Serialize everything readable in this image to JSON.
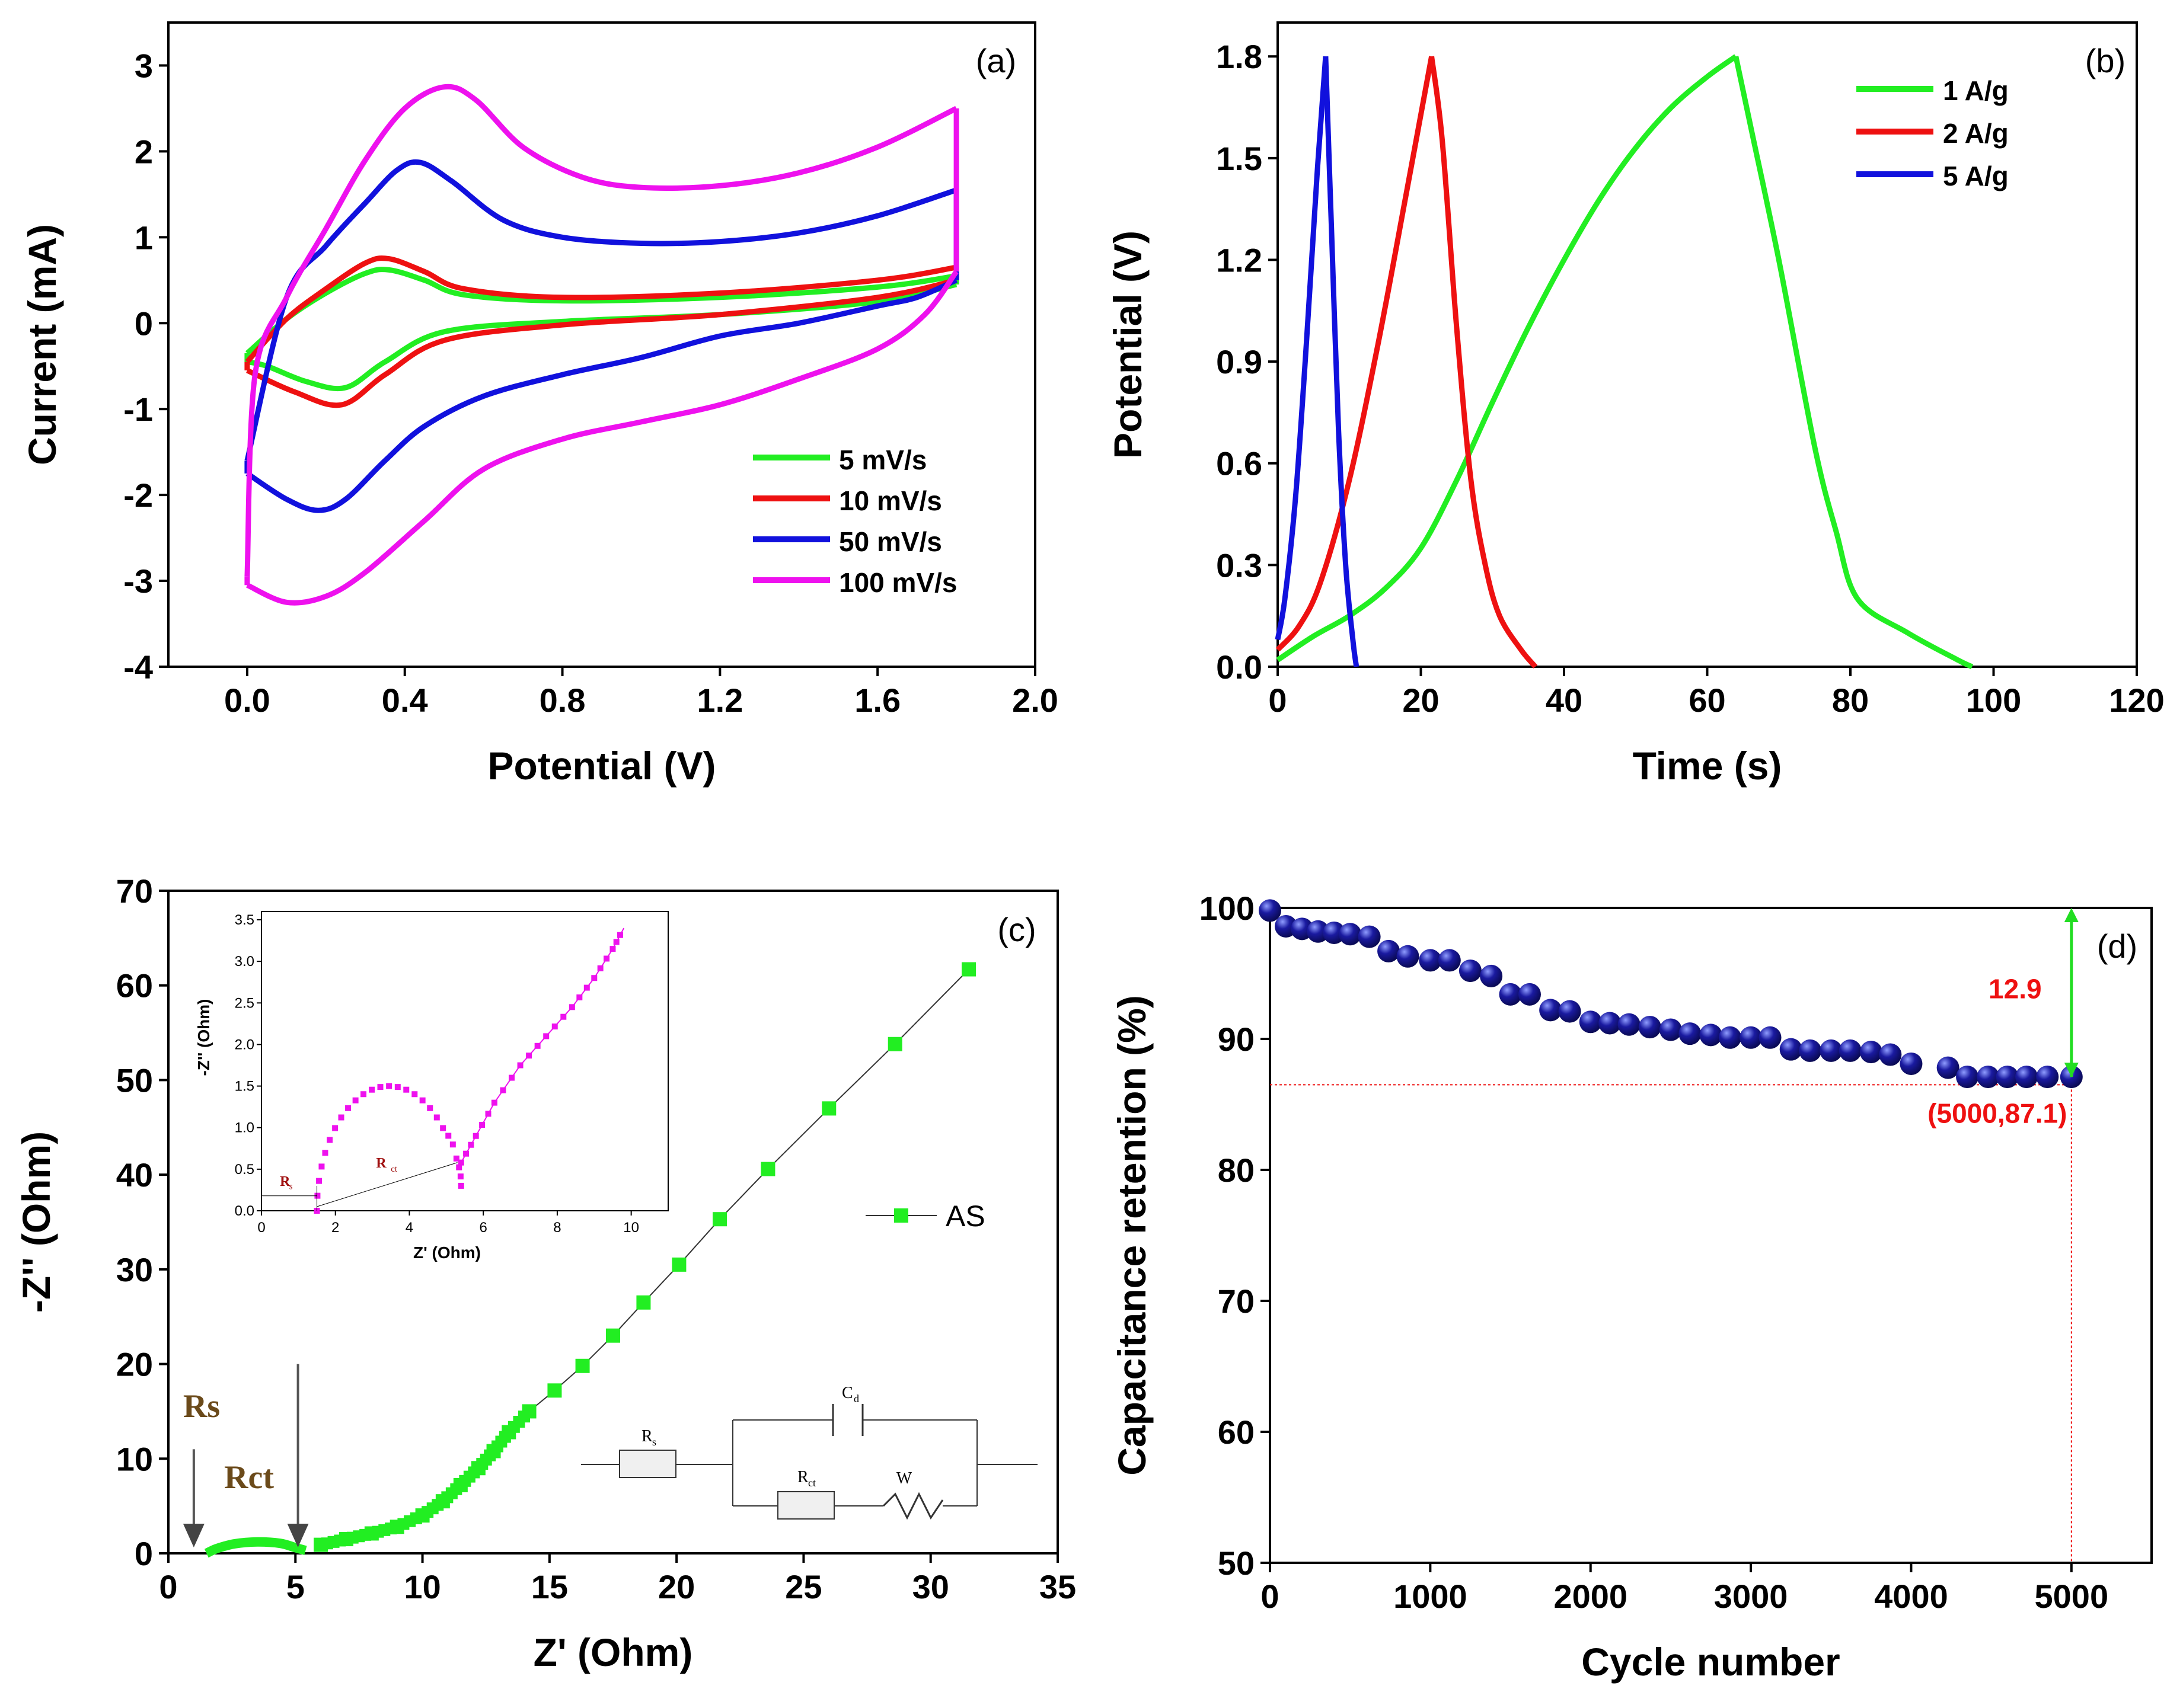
{
  "chart_data": [
    {
      "id": "a",
      "type": "line",
      "panel_label": "(a)",
      "xlabel": "Potential (V)",
      "ylabel": "Current (mA)",
      "xlim": [
        -0.2,
        2.0
      ],
      "ylim": [
        -4,
        3.5
      ],
      "xticks": [
        0.0,
        0.4,
        0.8,
        1.2,
        1.6,
        2.0
      ],
      "xtick_labels": [
        "0.0",
        "0.4",
        "0.8",
        "1.2",
        "1.6",
        "2.0"
      ],
      "yticks": [
        -4,
        -3,
        -2,
        -1,
        0,
        1,
        2,
        3
      ],
      "ytick_labels": [
        "-4",
        "-3",
        "-2",
        "-1",
        "0",
        "1",
        "2",
        "3"
      ],
      "legend_position": "bottom-right",
      "series": [
        {
          "name": "5 mV/s",
          "color": "#22ee22",
          "anodic": [
            [
              0.0,
              -0.35
            ],
            [
              0.1,
              0.05
            ],
            [
              0.2,
              0.35
            ],
            [
              0.3,
              0.58
            ],
            [
              0.36,
              0.62
            ],
            [
              0.45,
              0.5
            ],
            [
              0.55,
              0.33
            ],
            [
              0.8,
              0.26
            ],
            [
              1.2,
              0.3
            ],
            [
              1.6,
              0.42
            ],
            [
              1.8,
              0.55
            ]
          ],
          "cathodic": [
            [
              1.8,
              0.45
            ],
            [
              1.6,
              0.25
            ],
            [
              1.2,
              0.1
            ],
            [
              0.8,
              0.02
            ],
            [
              0.5,
              -0.1
            ],
            [
              0.35,
              -0.45
            ],
            [
              0.25,
              -0.75
            ],
            [
              0.15,
              -0.68
            ],
            [
              0.05,
              -0.5
            ],
            [
              0.0,
              -0.45
            ]
          ]
        },
        {
          "name": "10 mV/s",
          "color": "#ee1111",
          "anodic": [
            [
              0.0,
              -0.45
            ],
            [
              0.1,
              0.05
            ],
            [
              0.2,
              0.4
            ],
            [
              0.3,
              0.7
            ],
            [
              0.36,
              0.75
            ],
            [
              0.45,
              0.6
            ],
            [
              0.55,
              0.4
            ],
            [
              0.8,
              0.3
            ],
            [
              1.2,
              0.35
            ],
            [
              1.6,
              0.5
            ],
            [
              1.8,
              0.65
            ]
          ],
          "cathodic": [
            [
              1.8,
              0.5
            ],
            [
              1.6,
              0.3
            ],
            [
              1.2,
              0.1
            ],
            [
              0.8,
              -0.02
            ],
            [
              0.5,
              -0.2
            ],
            [
              0.35,
              -0.6
            ],
            [
              0.24,
              -0.95
            ],
            [
              0.12,
              -0.8
            ],
            [
              0.0,
              -0.55
            ]
          ]
        },
        {
          "name": "50 mV/s",
          "color": "#1111dd",
          "anodic": [
            [
              0.0,
              -1.6
            ],
            [
              0.1,
              0.3
            ],
            [
              0.2,
              0.9
            ],
            [
              0.3,
              1.4
            ],
            [
              0.38,
              1.78
            ],
            [
              0.44,
              1.87
            ],
            [
              0.52,
              1.65
            ],
            [
              0.65,
              1.2
            ],
            [
              0.8,
              1.0
            ],
            [
              1.0,
              0.93
            ],
            [
              1.2,
              0.95
            ],
            [
              1.4,
              1.05
            ],
            [
              1.6,
              1.25
            ],
            [
              1.8,
              1.55
            ]
          ],
          "cathodic": [
            [
              1.8,
              0.5
            ],
            [
              1.7,
              0.3
            ],
            [
              1.6,
              0.2
            ],
            [
              1.4,
              0.0
            ],
            [
              1.2,
              -0.15
            ],
            [
              1.0,
              -0.4
            ],
            [
              0.8,
              -0.6
            ],
            [
              0.6,
              -0.85
            ],
            [
              0.45,
              -1.2
            ],
            [
              0.35,
              -1.6
            ],
            [
              0.25,
              -2.05
            ],
            [
              0.18,
              -2.18
            ],
            [
              0.1,
              -2.05
            ],
            [
              0.0,
              -1.75
            ]
          ]
        },
        {
          "name": "100 mV/s",
          "color": "#ee11ee",
          "anodic": [
            [
              0.0,
              -2.95
            ],
            [
              0.02,
              -0.6
            ],
            [
              0.1,
              0.3
            ],
            [
              0.2,
              1.1
            ],
            [
              0.3,
              1.9
            ],
            [
              0.4,
              2.5
            ],
            [
              0.5,
              2.75
            ],
            [
              0.58,
              2.6
            ],
            [
              0.7,
              2.05
            ],
            [
              0.85,
              1.7
            ],
            [
              1.0,
              1.58
            ],
            [
              1.2,
              1.6
            ],
            [
              1.4,
              1.75
            ],
            [
              1.6,
              2.05
            ],
            [
              1.8,
              2.5
            ]
          ],
          "cathodic": [
            [
              1.8,
              0.6
            ],
            [
              1.72,
              0.1
            ],
            [
              1.6,
              -0.3
            ],
            [
              1.4,
              -0.65
            ],
            [
              1.2,
              -0.95
            ],
            [
              1.0,
              -1.15
            ],
            [
              0.8,
              -1.35
            ],
            [
              0.6,
              -1.7
            ],
            [
              0.45,
              -2.3
            ],
            [
              0.3,
              -2.9
            ],
            [
              0.2,
              -3.18
            ],
            [
              0.1,
              -3.25
            ],
            [
              0.0,
              -3.05
            ]
          ]
        }
      ]
    },
    {
      "id": "b",
      "type": "line",
      "panel_label": "(b)",
      "xlabel": "Time (s)",
      "ylabel": "Potential (V)",
      "xlim": [
        0,
        120
      ],
      "ylim": [
        0,
        1.9
      ],
      "xticks": [
        0,
        20,
        40,
        60,
        80,
        100,
        120
      ],
      "xtick_labels": [
        "0",
        "20",
        "40",
        "60",
        "80",
        "100",
        "120"
      ],
      "yticks": [
        0.0,
        0.3,
        0.6,
        0.9,
        1.2,
        1.5,
        1.8
      ],
      "ytick_labels": [
        "0.0",
        "0.3",
        "0.6",
        "0.9",
        "1.2",
        "1.5",
        "1.8"
      ],
      "legend_position": "top-right",
      "series": [
        {
          "name": "1 A/g",
          "color": "#22ee22",
          "points": [
            [
              0,
              0.02
            ],
            [
              5,
              0.09
            ],
            [
              10,
              0.15
            ],
            [
              15,
              0.23
            ],
            [
              20,
              0.35
            ],
            [
              25,
              0.55
            ],
            [
              30,
              0.78
            ],
            [
              35,
              1.0
            ],
            [
              40,
              1.2
            ],
            [
              45,
              1.38
            ],
            [
              50,
              1.53
            ],
            [
              55,
              1.65
            ],
            [
              60,
              1.74
            ],
            [
              64,
              1.8
            ],
            [
              66,
              1.6
            ],
            [
              70,
              1.2
            ],
            [
              75,
              0.65
            ],
            [
              78,
              0.4
            ],
            [
              81,
              0.2
            ],
            [
              88,
              0.1
            ],
            [
              95,
              0.02
            ],
            [
              97,
              0.0
            ]
          ]
        },
        {
          "name": "2 A/g",
          "color": "#ee1111",
          "points": [
            [
              0,
              0.05
            ],
            [
              3,
              0.12
            ],
            [
              6,
              0.25
            ],
            [
              10,
              0.55
            ],
            [
              14,
              0.95
            ],
            [
              18,
              1.4
            ],
            [
              21.5,
              1.8
            ],
            [
              23,
              1.55
            ],
            [
              25,
              1.0
            ],
            [
              27,
              0.55
            ],
            [
              29,
              0.3
            ],
            [
              31,
              0.15
            ],
            [
              34,
              0.05
            ],
            [
              36,
              0.0
            ]
          ]
        },
        {
          "name": "5 A/g",
          "color": "#1111dd",
          "points": [
            [
              0,
              0.08
            ],
            [
              1,
              0.2
            ],
            [
              2.5,
              0.5
            ],
            [
              4,
              0.95
            ],
            [
              5.5,
              1.45
            ],
            [
              6.7,
              1.8
            ],
            [
              7.5,
              1.3
            ],
            [
              8.5,
              0.7
            ],
            [
              9.5,
              0.3
            ],
            [
              10.5,
              0.08
            ],
            [
              11,
              0.0
            ]
          ]
        }
      ]
    },
    {
      "id": "c",
      "type": "scatter",
      "panel_label": "(c)",
      "xlabel": "Z' (Ohm)",
      "ylabel": "-Z'' (Ohm)",
      "xlim": [
        0,
        35
      ],
      "ylim": [
        0,
        70
      ],
      "xticks": [
        0,
        5,
        10,
        15,
        20,
        25,
        30,
        35
      ],
      "xtick_labels": [
        "0",
        "5",
        "10",
        "15",
        "20",
        "25",
        "30",
        "35"
      ],
      "yticks": [
        0,
        10,
        20,
        30,
        40,
        50,
        60,
        70
      ],
      "ytick_labels": [
        "0",
        "10",
        "20",
        "30",
        "40",
        "50",
        "60",
        "70"
      ],
      "legend": [
        {
          "name": "AS",
          "color": "#22ee22",
          "marker": "square"
        }
      ],
      "series": [
        {
          "name": "AS",
          "color": "#22ee22",
          "points": [
            [
              6.0,
              0.9
            ],
            [
              7.0,
              1.5
            ],
            [
              8.0,
              2.1
            ],
            [
              9.0,
              2.8
            ],
            [
              10.0,
              4.0
            ],
            [
              10.8,
              5.5
            ],
            [
              11.5,
              7.2
            ],
            [
              12.2,
              9.0
            ],
            [
              12.8,
              10.8
            ],
            [
              13.4,
              12.8
            ],
            [
              14.2,
              15.0
            ],
            [
              15.2,
              17.2
            ],
            [
              16.3,
              19.8
            ],
            [
              17.5,
              23.0
            ],
            [
              18.7,
              26.5
            ],
            [
              20.1,
              30.5
            ],
            [
              21.7,
              35.3
            ],
            [
              23.6,
              40.6
            ],
            [
              26.0,
              47.0
            ],
            [
              28.6,
              53.8
            ],
            [
              31.5,
              61.7
            ]
          ]
        },
        {
          "name": "semicircle",
          "color": "#22ee22",
          "points": [
            [
              1.5,
              0.0
            ],
            [
              1.9,
              0.5
            ],
            [
              2.6,
              1.0
            ],
            [
              3.5,
              1.2
            ],
            [
              4.4,
              1.05
            ],
            [
              5.0,
              0.6
            ],
            [
              5.4,
              0.3
            ]
          ]
        }
      ],
      "annotations": [
        {
          "text": "Rs",
          "x": 1.0,
          "y": 14.5,
          "arrow_to": [
            1.0,
            0.2
          ]
        },
        {
          "text": "Rct",
          "x": 3.3,
          "y": 7.5
        },
        {
          "text": "",
          "arrow_from": [
            5.1,
            20
          ],
          "arrow_to": [
            5.1,
            0.2
          ]
        }
      ],
      "inset": {
        "xlabel": "Z' (Ohm)",
        "ylabel": "-Z'' (Ohm)",
        "xlim": [
          0,
          11
        ],
        "ylim": [
          0,
          3.6
        ],
        "xticks": [
          0,
          2,
          4,
          6,
          8,
          10
        ],
        "xtick_labels": [
          "0",
          "2",
          "4",
          "6",
          "8",
          "10"
        ],
        "yticks": [
          0.0,
          0.5,
          1.0,
          1.5,
          2.0,
          2.5,
          3.0,
          3.5
        ],
        "ytick_labels": [
          "0.0",
          "0.5",
          "1.0",
          "1.5",
          "2.0",
          "2.5",
          "3.0",
          "3.5"
        ],
        "color": "#ee11ee",
        "arc": {
          "x_start": 1.5,
          "x_end": 5.4,
          "height": 1.5
        },
        "tail": [
          [
            5.4,
            0.58
          ],
          [
            5.8,
            0.9
          ],
          [
            6.3,
            1.3
          ],
          [
            7.0,
            1.75
          ],
          [
            7.7,
            2.1
          ],
          [
            8.4,
            2.45
          ],
          [
            9.0,
            2.8
          ],
          [
            9.5,
            3.15
          ],
          [
            9.8,
            3.4
          ]
        ],
        "labels": {
          "rs": "R",
          "rs_sub": "s",
          "rct": "R",
          "rct_sub": "ct"
        }
      },
      "circuit": {
        "labels": {
          "rs": "R",
          "rs_sub": "s",
          "cd": "C",
          "cd_sub": "d",
          "rct": "R",
          "rct_sub": "ct",
          "w": "W"
        }
      }
    },
    {
      "id": "d",
      "type": "scatter",
      "panel_label": "(d)",
      "xlabel": "Cycle number",
      "ylabel": "Capacitance retention (%)",
      "xlim": [
        0,
        5500
      ],
      "ylim": [
        50,
        100
      ],
      "xticks": [
        0,
        1000,
        2000,
        3000,
        4000,
        5000
      ],
      "xtick_labels": [
        "0",
        "1000",
        "2000",
        "3000",
        "4000",
        "5000"
      ],
      "yticks": [
        50,
        60,
        70,
        80,
        90,
        100
      ],
      "ytick_labels": [
        "50",
        "60",
        "70",
        "80",
        "90",
        "100"
      ],
      "color": "#1a1aa0",
      "x": [
        0,
        100,
        200,
        300,
        400,
        500,
        620,
        740,
        860,
        1000,
        1120,
        1250,
        1380,
        1500,
        1620,
        1750,
        1870,
        2000,
        2120,
        2240,
        2370,
        2500,
        2620,
        2750,
        2870,
        3000,
        3120,
        3250,
        3370,
        3500,
        3620,
        3750,
        3870,
        4000,
        4230,
        4350,
        4480,
        4600,
        4720,
        4850,
        5000
      ],
      "y": [
        99.8,
        98.6,
        98.4,
        98.2,
        98.1,
        98.0,
        97.8,
        96.7,
        96.3,
        96.0,
        96.0,
        95.2,
        94.8,
        93.4,
        93.4,
        92.2,
        92.1,
        91.3,
        91.2,
        91.1,
        90.9,
        90.7,
        90.4,
        90.3,
        90.1,
        90.1,
        90.1,
        89.2,
        89.1,
        89.1,
        89.1,
        89.0,
        88.8,
        88.1,
        87.8,
        87.1,
        87.1,
        87.1,
        87.1,
        87.1,
        87.1
      ],
      "highlight": {
        "x": 5000,
        "y": 87.1,
        "label": "(5000,87.1)",
        "ref_y": 86.5
      },
      "drop": {
        "from": 87.1,
        "to": 100,
        "label": "12.9",
        "arrow_color": "#22dd22",
        "label_color": "#ee1111"
      }
    }
  ]
}
